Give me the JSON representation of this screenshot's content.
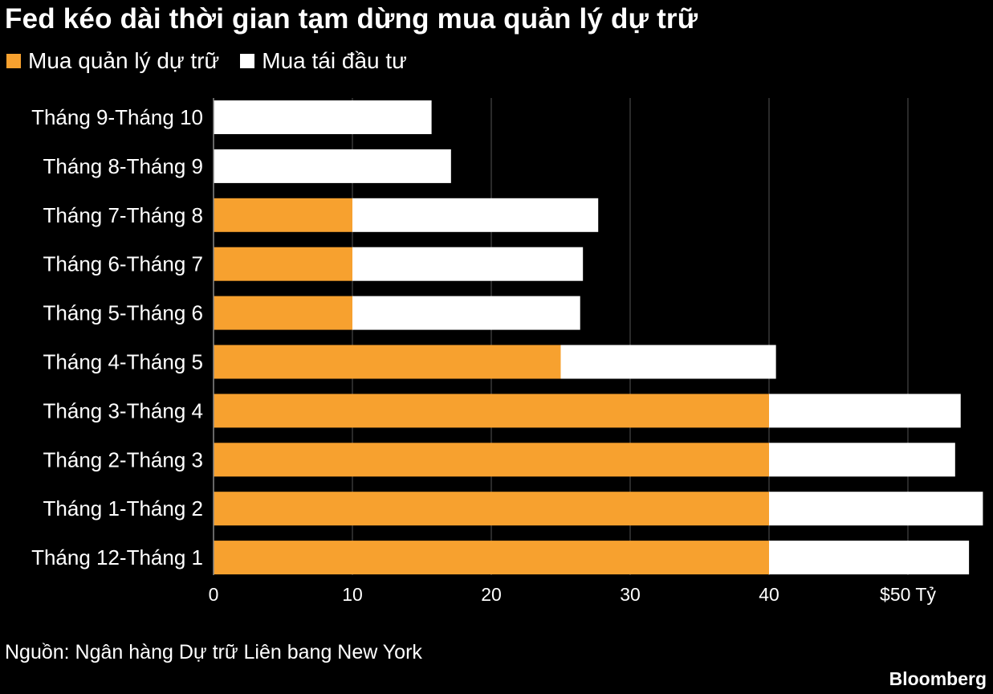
{
  "chart_data": {
    "type": "bar",
    "orientation": "horizontal",
    "stacked": true,
    "title": "Fed kéo dài thời gian tạm dừng mua quản lý dự trữ",
    "categories": [
      "Tháng 9-Tháng 10",
      "Tháng 8-Tháng 9",
      "Tháng 7-Tháng 8",
      "Tháng 6-Tháng 7",
      "Tháng 5-Tháng 6",
      "Tháng 4-Tháng 5",
      "Tháng 3-Tháng 4",
      "Tháng 2-Tháng 3",
      "Tháng 1-Tháng 2",
      "Tháng 12-Tháng 1"
    ],
    "series": [
      {
        "name": "Mua quản lý dự trữ",
        "color": "#F7A12F",
        "values": [
          0,
          0,
          10,
          10,
          10,
          25,
          40,
          40,
          40,
          40
        ]
      },
      {
        "name": "Mua tái đầu tư",
        "color": "#FFFFFF",
        "values": [
          15.7,
          17.1,
          17.7,
          16.6,
          16.4,
          15.5,
          13.8,
          13.4,
          15.4,
          14.4
        ]
      }
    ],
    "xlim": [
      0,
      55
    ],
    "xticks": [
      0,
      10,
      20,
      30,
      40,
      50
    ],
    "xtick_labels": [
      "0",
      "10",
      "20",
      "30",
      "40",
      "$50 Tỷ"
    ],
    "grid": true,
    "legend_position": "top-left"
  },
  "source": "Nguồn: Ngân hàng Dự trữ Liên bang New York",
  "brand": "Bloomberg",
  "colors": {
    "background": "#000000",
    "gridline": "#555555"
  }
}
